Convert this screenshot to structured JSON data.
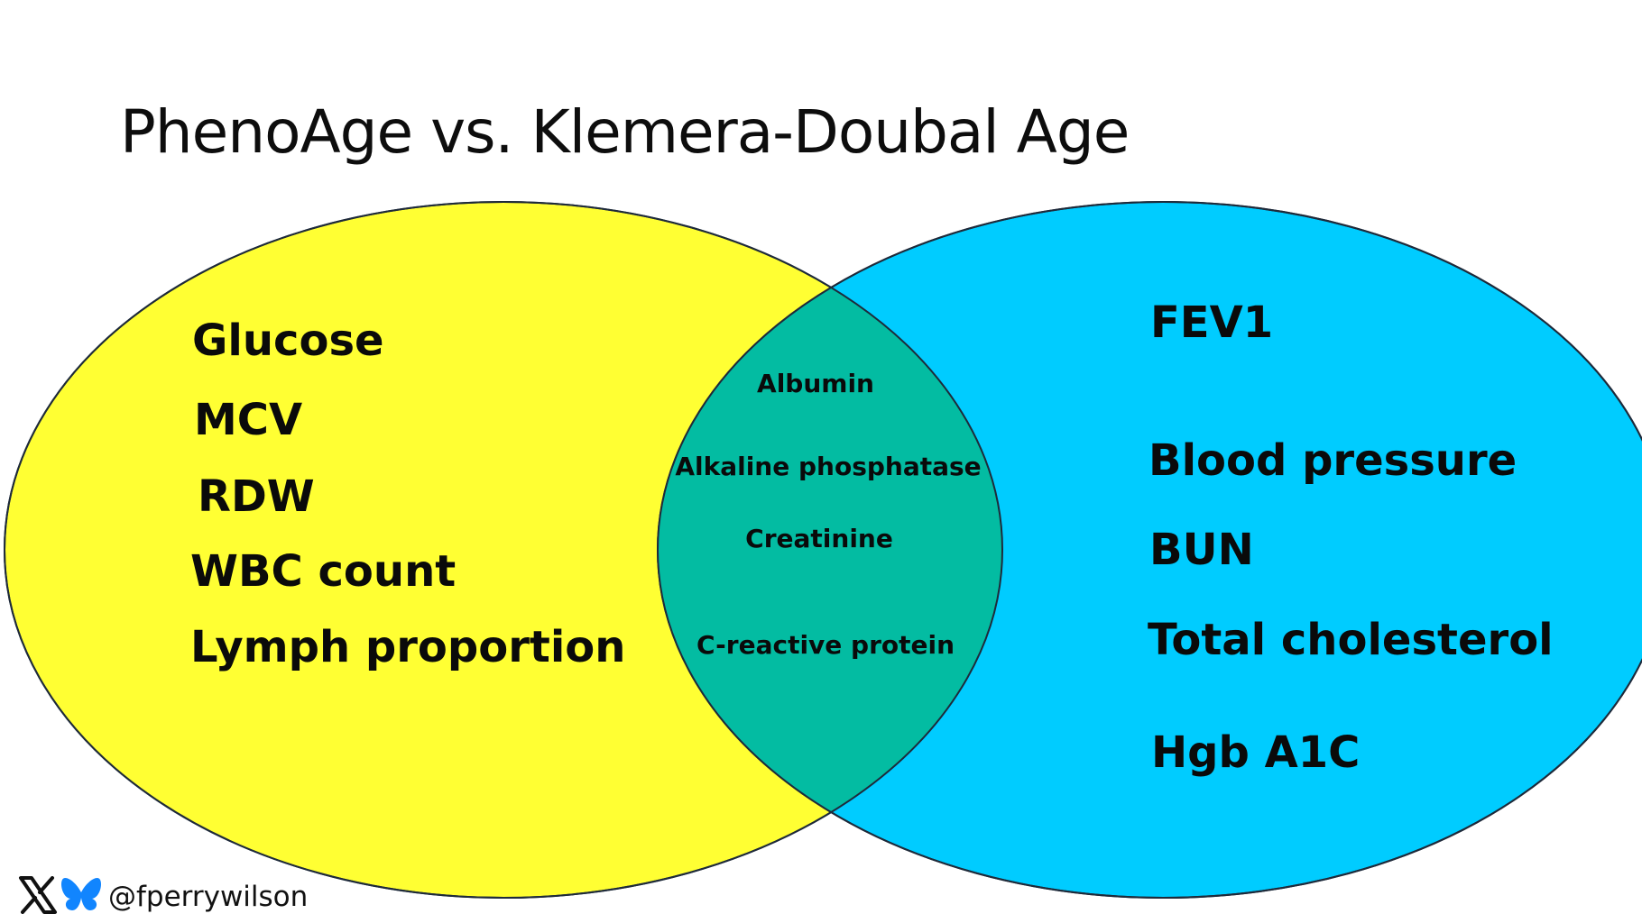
{
  "title": "PhenoAge vs. Klemera-Doubal Age",
  "colors": {
    "left_circle": "#ffff33",
    "right_circle": "#00ccff",
    "overlap": "#03bca2",
    "outline": "#1e2a3a"
  },
  "left_only": [
    "Glucose",
    "MCV",
    "RDW",
    "WBC count",
    "Lymph proportion"
  ],
  "overlap": [
    "Albumin",
    "Alkaline phosphatase",
    "Creatinine",
    "C-reactive protein"
  ],
  "right_only": [
    "FEV1",
    "Blood pressure",
    "BUN",
    "Total cholesterol",
    "Hgb A1C"
  ],
  "footer": {
    "handle": "@fperrywilson",
    "icons": [
      "x-logo-icon",
      "bluesky-butterfly-icon"
    ]
  }
}
